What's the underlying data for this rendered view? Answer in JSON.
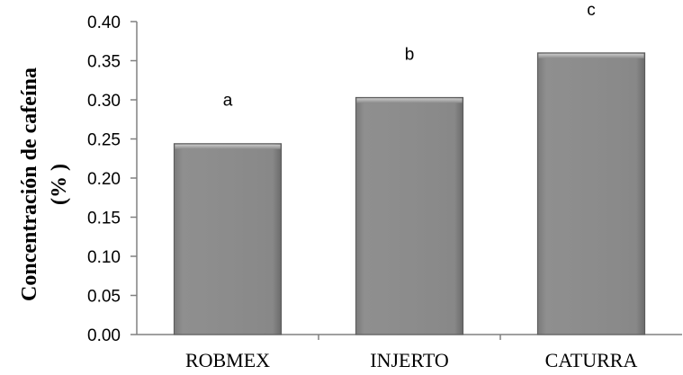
{
  "chart_data": {
    "type": "bar",
    "categories": [
      "ROBMEX",
      "INJERTO",
      "CATURRA"
    ],
    "values": [
      0.244,
      0.303,
      0.36
    ],
    "data_labels": [
      "a",
      "b",
      "c"
    ],
    "title": "",
    "xlabel": "",
    "ylabel_lines": [
      "Concentración de cafeína",
      "(% )"
    ],
    "ylim": [
      0,
      0.4
    ],
    "yticks": [
      "0.00",
      "0.05",
      "0.10",
      "0.15",
      "0.20",
      "0.25",
      "0.30",
      "0.35",
      "0.40"
    ],
    "grid": false,
    "legend": "none",
    "colors": {
      "bar": "#8c8c8c",
      "bar_edge": "#5a5a5a",
      "bar_highlight": "#b4b4b4",
      "axis": "#808080"
    }
  }
}
